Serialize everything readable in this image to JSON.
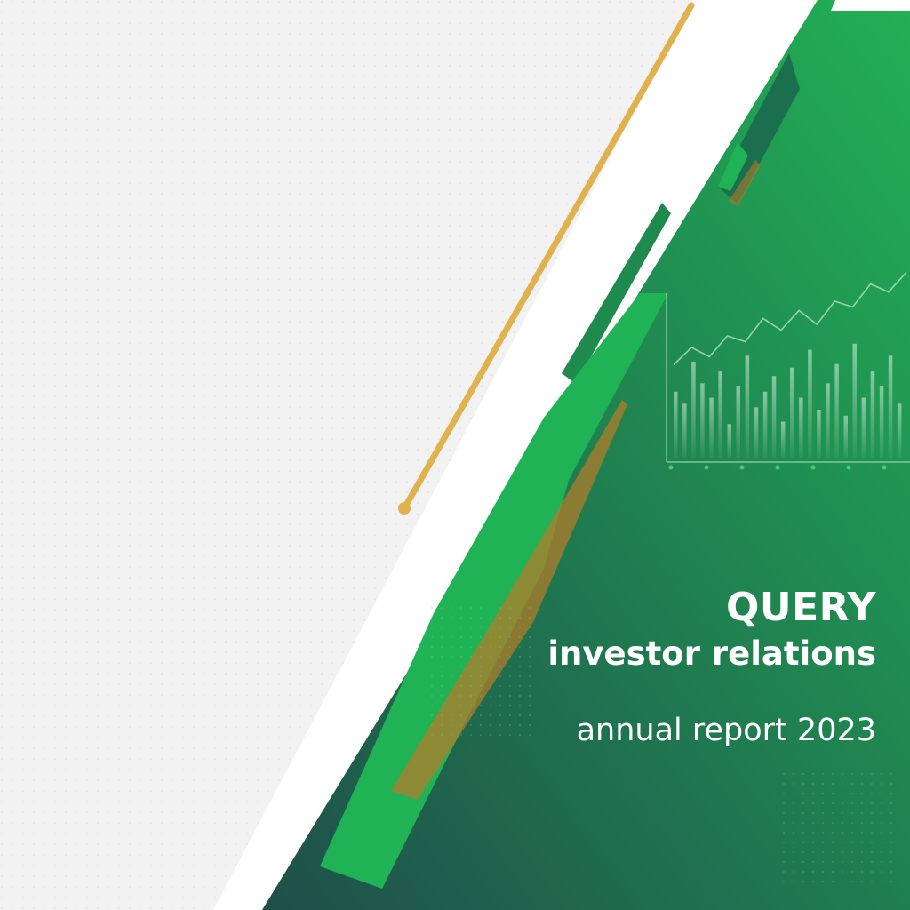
{
  "cover": {
    "brand": "QUERY",
    "subtitle": "investor relations",
    "report_title": "annual report 2023"
  },
  "colors": {
    "background": "#f1f2f1",
    "green_dark": "#215a4f",
    "green_mid": "#1b8a4c",
    "green_bright": "#1fb457",
    "gold": "#e0b14c",
    "white": "#ffffff",
    "text": "#ffffff"
  },
  "decoration": {
    "background_pattern": "dot-grid",
    "band_style": "diagonal-stripes",
    "chart_motif": "bar-and-line-chart",
    "bar_levels": [
      0.55,
      0.45,
      0.8,
      0.62,
      0.5,
      0.72,
      0.28,
      0.6,
      0.85,
      0.42,
      0.55,
      0.68,
      0.3,
      0.75,
      0.5,
      0.9,
      0.4,
      0.62,
      0.78,
      0.35,
      0.95,
      0.5,
      0.72,
      0.6,
      0.85,
      0.45
    ],
    "line_levels": [
      0.15,
      0.3,
      0.22,
      0.4,
      0.35,
      0.55,
      0.45,
      0.62,
      0.5,
      0.7,
      0.65,
      0.85,
      0.78,
      0.95
    ]
  }
}
